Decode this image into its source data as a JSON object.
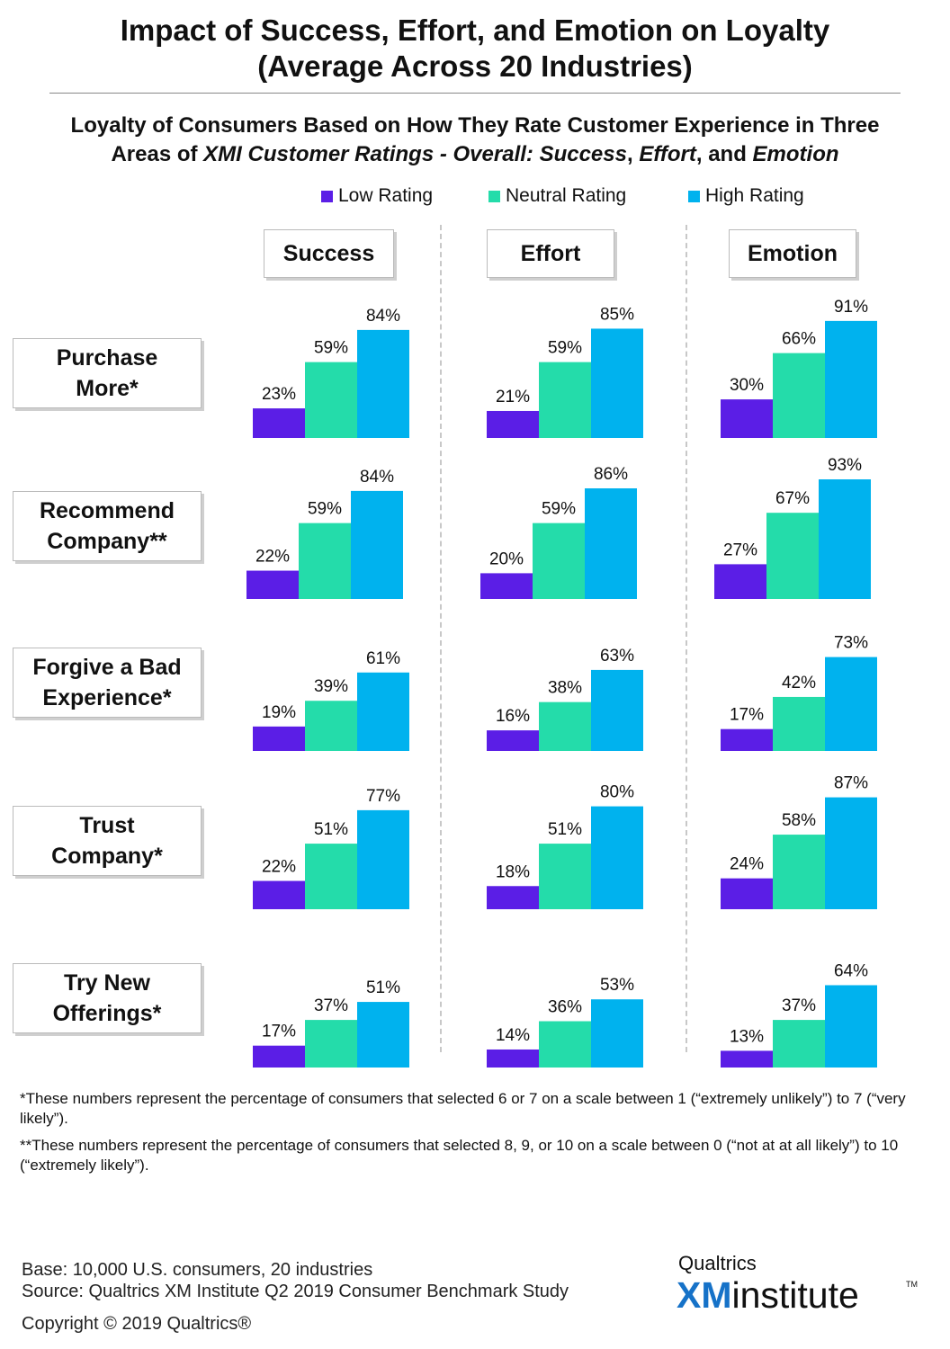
{
  "header": {
    "title_line1": "Impact of Success, Effort, and Emotion on Loyalty",
    "title_line2": "(Average Across 20 Industries)",
    "subtitle_line1": "Loyalty of Consumers Based on How They Rate Customer Experience in Three",
    "subtitle_prefix": "Areas of ",
    "subtitle_italic1": "XMI Customer Ratings - Overall: Success",
    "subtitle_sep1": ", ",
    "subtitle_italic2": "Effort",
    "subtitle_sep2": ", and ",
    "subtitle_italic3": "Emotion"
  },
  "colors": {
    "low": "#5b1ee6",
    "neutral": "#24dcaa",
    "high": "#00b2ee"
  },
  "chart_data": {
    "type": "bar",
    "series": [
      {
        "name": "Low Rating",
        "color": "#5b1ee6"
      },
      {
        "name": "Neutral Rating",
        "color": "#24dcaa"
      },
      {
        "name": "High Rating",
        "color": "#00b2ee"
      }
    ],
    "panels": [
      "Success",
      "Effort",
      "Emotion"
    ],
    "metrics": [
      {
        "label": "Purchase\nMore*",
        "values": {
          "Success": [
            23,
            59,
            84
          ],
          "Effort": [
            21,
            59,
            85
          ],
          "Emotion": [
            30,
            66,
            91
          ]
        }
      },
      {
        "label": "Recommend\nCompany**",
        "values": {
          "Success": [
            22,
            59,
            84
          ],
          "Effort": [
            20,
            59,
            86
          ],
          "Emotion": [
            27,
            67,
            93
          ]
        }
      },
      {
        "label": "Forgive a Bad\nExperience*",
        "values": {
          "Success": [
            19,
            39,
            61
          ],
          "Effort": [
            16,
            38,
            63
          ],
          "Emotion": [
            17,
            42,
            73
          ]
        }
      },
      {
        "label": "Trust\nCompany*",
        "values": {
          "Success": [
            22,
            51,
            77
          ],
          "Effort": [
            18,
            51,
            80
          ],
          "Emotion": [
            24,
            58,
            87
          ]
        }
      },
      {
        "label": "Try New\nOfferings*",
        "values": {
          "Success": [
            17,
            37,
            51
          ],
          "Effort": [
            14,
            36,
            53
          ],
          "Emotion": [
            13,
            37,
            64
          ]
        }
      }
    ],
    "value_suffix": "%",
    "ylim": [
      0,
      100
    ]
  },
  "footnotes": {
    "single": "*These numbers represent the percentage of consumers that selected 6 or 7 on a scale between 1 (“extremely unlikely”) to 7 (“very likely”).",
    "double": "**These numbers represent the percentage of consumers that selected 8, 9, or 10 on a scale between 0 (“not at at all likely”) to 10 (“extremely likely”)."
  },
  "source": {
    "base": "Base: 10,000 U.S. consumers, 20 industries",
    "source": "Source: Qualtrics XM Institute Q2 2019 Consumer Benchmark Study",
    "copyright": "Copyright © 2019 Qualtrics®"
  },
  "brand": {
    "top": "Qualtrics",
    "xm": "XM",
    "institute": "institute",
    "tm": "TM"
  }
}
